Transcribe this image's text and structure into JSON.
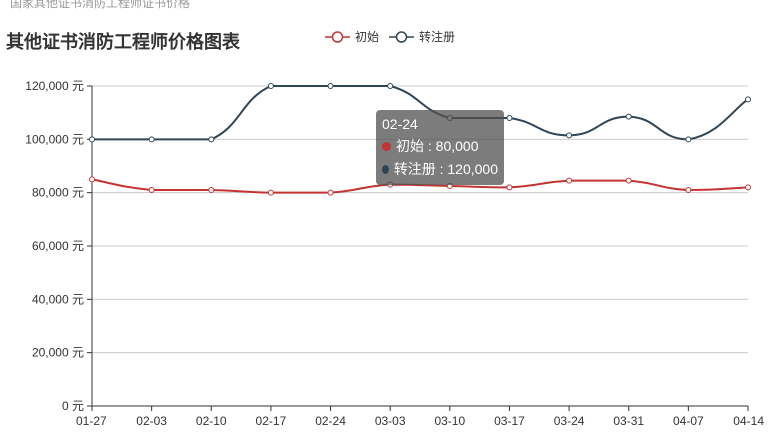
{
  "top_caption": "国家其他证书消防工程师证书价格",
  "title": "其他证书消防工程师价格图表",
  "colors": {
    "series1": "#c23531",
    "series2": "#2f4554",
    "grid": "#cccccc",
    "axis": "#333333"
  },
  "chart_data": {
    "type": "line",
    "title": "其他证书消防工程师价格图表",
    "categories": [
      "01-27",
      "02-03",
      "02-10",
      "02-17",
      "02-24",
      "03-03",
      "03-10",
      "03-17",
      "03-24",
      "03-31",
      "04-07",
      "04-14"
    ],
    "y_unit": "元",
    "yticks": [
      "0 元",
      "20,000 元",
      "40,000 元",
      "60,000 元",
      "80,000 元",
      "100,000 元",
      "120,000 元"
    ],
    "ylim": [
      0,
      120000
    ],
    "grid": true,
    "legend_position": "top",
    "series": [
      {
        "name": "初始",
        "color": "#c23531",
        "values": [
          85000,
          81000,
          81000,
          80000,
          80000,
          83000,
          82500,
          82000,
          84500,
          84500,
          81000,
          82000
        ]
      },
      {
        "name": "转注册",
        "color": "#2f4554",
        "values": [
          100000,
          100000,
          100000,
          120000,
          120000,
          120000,
          108000,
          108000,
          101500,
          108500,
          100000,
          115000
        ]
      }
    ]
  },
  "tooltip": {
    "title": "02-24",
    "rows": [
      {
        "label": "初始 : 80,000",
        "color": "#c23531"
      },
      {
        "label": "转注册 : 120,000",
        "color": "#2f4554"
      }
    ]
  }
}
